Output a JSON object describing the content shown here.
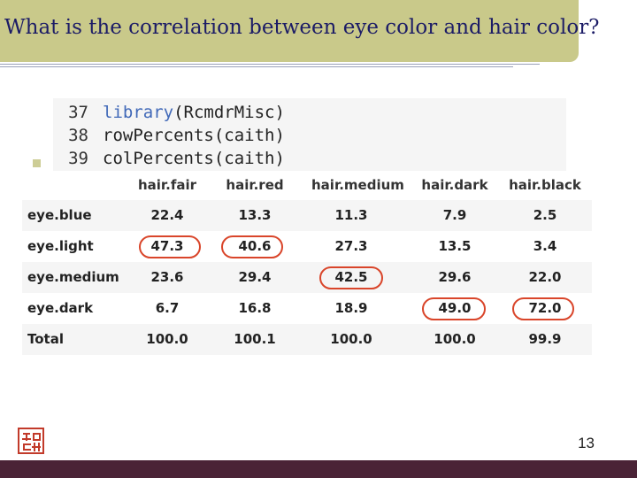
{
  "slide": {
    "title": "What is the correlation between eye color and hair color?",
    "page_number": "13"
  },
  "code": {
    "lines": [
      {
        "num": "37",
        "func": "library",
        "rest": "(RcmdrMisc)"
      },
      {
        "num": "38",
        "func": "",
        "rest": "rowPercents(caith)"
      },
      {
        "num": "39",
        "func": "",
        "rest": "colPercents(caith)"
      }
    ]
  },
  "table": {
    "columns": [
      "hair.fair",
      "hair.red",
      "hair.medium",
      "hair.dark",
      "hair.black"
    ],
    "rows": [
      {
        "label": "eye.blue",
        "values": [
          "22.4",
          "13.3",
          "11.3",
          "7.9",
          "2.5"
        ]
      },
      {
        "label": "eye.light",
        "values": [
          "47.3",
          "40.6",
          "27.3",
          "13.5",
          "3.4"
        ]
      },
      {
        "label": "eye.medium",
        "values": [
          "23.6",
          "29.4",
          "42.5",
          "29.6",
          "22.0"
        ]
      },
      {
        "label": "eye.dark",
        "values": [
          "6.7",
          "16.8",
          "18.9",
          "49.0",
          "72.0"
        ]
      },
      {
        "label": "Total",
        "values": [
          "100.0",
          "100.1",
          "100.0",
          "100.0",
          "99.9"
        ]
      }
    ],
    "highlighted_cells": [
      {
        "row": "eye.light",
        "column": "hair.fair"
      },
      {
        "row": "eye.light",
        "column": "hair.red"
      },
      {
        "row": "eye.medium",
        "column": "hair.medium"
      },
      {
        "row": "eye.dark",
        "column": "hair.dark"
      },
      {
        "row": "eye.dark",
        "column": "hair.black"
      }
    ],
    "highlight_color": "#d9452a"
  },
  "colors": {
    "title_bar": "#c9c98a",
    "title_text": "#1c1c66",
    "footer_bar": "#4a2336",
    "code_function": "#4169b8"
  },
  "logo": {
    "icon": "red-seal-stamp-icon"
  }
}
